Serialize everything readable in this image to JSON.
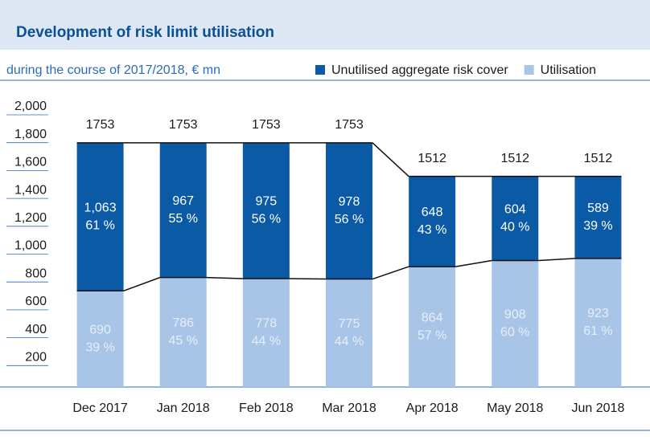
{
  "chart_data": {
    "type": "stacked_bar",
    "title": "Development of risk limit utilisation",
    "subtitle": "during the course of 2017/2018, € mn",
    "categories": [
      "Dec 2017",
      "Jan 2018",
      "Feb 2018",
      "Mar 2018",
      "Apr 2018",
      "May 2018",
      "Jun 2018"
    ],
    "series": [
      {
        "name": "Utilisation",
        "color": "#a8c5e8",
        "label_color": "#e6eef9",
        "values": [
          690,
          786,
          778,
          775,
          864,
          908,
          923
        ],
        "shares": [
          39,
          45,
          44,
          44,
          57,
          60,
          61
        ],
        "share_labels": [
          "39 %",
          "45 %",
          "44 %",
          "44 %",
          "57 %",
          "60 %",
          "61 %"
        ]
      },
      {
        "name": "Unutilised aggregate risk cover",
        "color": "#0b5aa6",
        "label_color": "#ffffff",
        "values": [
          1063,
          967,
          975,
          978,
          648,
          604,
          589
        ],
        "value_labels": [
          "1,063",
          "967",
          "975",
          "978",
          "648",
          "604",
          "589"
        ],
        "shares": [
          61,
          55,
          56,
          56,
          43,
          40,
          39
        ],
        "share_labels": [
          "61 %",
          "55 %",
          "56 %",
          "56 %",
          "43 %",
          "40 %",
          "39 %"
        ]
      }
    ],
    "totals": [
      1753,
      1753,
      1753,
      1753,
      1512,
      1512,
      1512
    ],
    "total_labels": [
      "1,753",
      "1,753",
      "1,753",
      "1,753",
      "1,512",
      "1,512",
      "1,512"
    ],
    "ylim": [
      0,
      2000
    ],
    "yticks": [
      200,
      400,
      600,
      800,
      {
        "value": 1000,
        "label": "1,000"
      },
      {
        "value": 1200,
        "label": "1,200"
      },
      {
        "value": 1400,
        "label": "1,400"
      },
      {
        "value": 1600,
        "label": "1,600"
      },
      {
        "value": 1800,
        "label": "1,800"
      },
      {
        "value": 2000,
        "label": "2,000"
      }
    ],
    "legend": "top-right"
  }
}
